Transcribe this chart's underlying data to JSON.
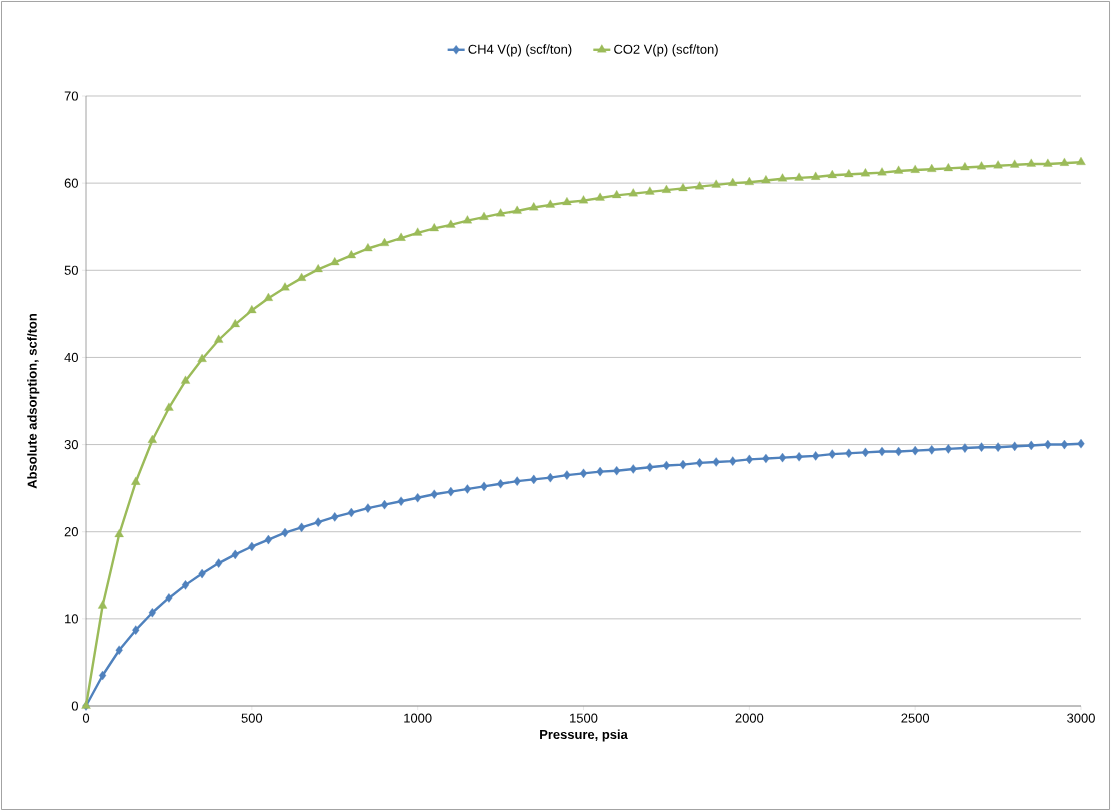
{
  "chart_data": {
    "type": "line",
    "xlabel": "Pressure, psia",
    "ylabel": "Absolute adsorption, scf/ton",
    "x": [
      0,
      50,
      100,
      150,
      200,
      250,
      300,
      350,
      400,
      450,
      500,
      550,
      600,
      650,
      700,
      750,
      800,
      850,
      900,
      950,
      1000,
      1050,
      1100,
      1150,
      1200,
      1250,
      1300,
      1350,
      1400,
      1450,
      1500,
      1550,
      1600,
      1650,
      1700,
      1750,
      1800,
      1850,
      1900,
      1950,
      2000,
      2050,
      2100,
      2150,
      2200,
      2250,
      2300,
      2350,
      2400,
      2450,
      2500,
      2550,
      2600,
      2650,
      2700,
      2750,
      2800,
      2850,
      2900,
      2950,
      3000
    ],
    "series": [
      {
        "name": "CH4 V(p) (scf/ton)",
        "color": "#4f81bd",
        "marker": "diamond",
        "values": [
          0,
          3.5,
          6.4,
          8.7,
          10.7,
          12.4,
          13.9,
          15.2,
          16.4,
          17.4,
          18.3,
          19.1,
          19.9,
          20.5,
          21.1,
          21.7,
          22.2,
          22.7,
          23.1,
          23.5,
          23.9,
          24.3,
          24.6,
          24.9,
          25.2,
          25.5,
          25.8,
          26.0,
          26.2,
          26.5,
          26.7,
          26.9,
          27.0,
          27.2,
          27.4,
          27.6,
          27.7,
          27.9,
          28.0,
          28.1,
          28.3,
          28.4,
          28.5,
          28.6,
          28.7,
          28.9,
          29.0,
          29.1,
          29.2,
          29.2,
          29.3,
          29.4,
          29.5,
          29.6,
          29.7,
          29.7,
          29.8,
          29.9,
          30.0,
          30.0,
          30.1
        ]
      },
      {
        "name": "CO2 V(p) (scf/ton)",
        "color": "#9bbb59",
        "marker": "triangle",
        "values": [
          0,
          11.5,
          19.7,
          25.7,
          30.5,
          34.2,
          37.3,
          39.8,
          42.0,
          43.8,
          45.4,
          46.8,
          48.0,
          49.1,
          50.1,
          50.9,
          51.7,
          52.5,
          53.1,
          53.7,
          54.3,
          54.8,
          55.2,
          55.7,
          56.1,
          56.5,
          56.8,
          57.2,
          57.5,
          57.8,
          58.0,
          58.3,
          58.6,
          58.8,
          59.0,
          59.2,
          59.4,
          59.6,
          59.8,
          60.0,
          60.1,
          60.3,
          60.5,
          60.6,
          60.7,
          60.9,
          61.0,
          61.1,
          61.2,
          61.4,
          61.5,
          61.6,
          61.7,
          61.8,
          61.9,
          62.0,
          62.1,
          62.2,
          62.2,
          62.3,
          62.4
        ]
      }
    ],
    "xlim": [
      0,
      3000
    ],
    "xticks": [
      0,
      500,
      1000,
      1500,
      2000,
      2500,
      3000
    ],
    "ylim": [
      0,
      70
    ],
    "yticks": [
      0,
      10,
      20,
      30,
      40,
      50,
      60,
      70
    ],
    "grid": "y",
    "legend": "top",
    "line_style": "solid"
  }
}
